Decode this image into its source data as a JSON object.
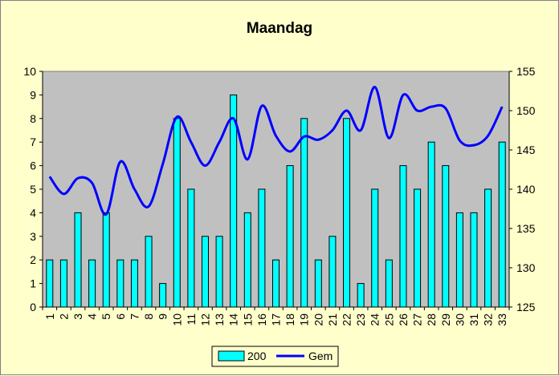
{
  "chart_data": {
    "type": "bar",
    "title": "Maandag",
    "categories": [
      "1",
      "2",
      "3",
      "4",
      "5",
      "6",
      "7",
      "8",
      "9",
      "10",
      "11",
      "12",
      "13",
      "14",
      "15",
      "16",
      "17",
      "18",
      "19",
      "20",
      "21",
      "22",
      "23",
      "24",
      "25",
      "26",
      "27",
      "28",
      "29",
      "30",
      "31",
      "32",
      "33"
    ],
    "series": [
      {
        "name": "200",
        "type": "bar",
        "axis": "left",
        "color": "#00ffff",
        "values": [
          2,
          2,
          4,
          2,
          4,
          2,
          2,
          3,
          1,
          8,
          5,
          3,
          3,
          9,
          4,
          5,
          2,
          6,
          8,
          2,
          3,
          8,
          1,
          5,
          2,
          6,
          5,
          7,
          6,
          4,
          4,
          5,
          7
        ]
      },
      {
        "name": "Gem",
        "type": "line",
        "axis": "right",
        "color": "#0000ff",
        "values": [
          141.6,
          139.4,
          141.4,
          140.8,
          136.8,
          143.5,
          140.0,
          137.8,
          143.2,
          149.2,
          146.0,
          143.0,
          146.0,
          149.0,
          143.8,
          150.6,
          146.8,
          144.8,
          146.7,
          146.3,
          147.5,
          150.0,
          147.5,
          153.0,
          146.5,
          152.0,
          150.0,
          150.5,
          150.3,
          146.2,
          145.6,
          146.8,
          150.5
        ]
      }
    ],
    "ylim_left": [
      0,
      10
    ],
    "ylim_right": [
      125,
      155
    ],
    "yticks_left": [
      "0",
      "1",
      "2",
      "3",
      "4",
      "5",
      "6",
      "7",
      "8",
      "9",
      "10"
    ],
    "yticks_right": [
      "125",
      "130",
      "135",
      "140",
      "145",
      "150",
      "155"
    ],
    "grid": false,
    "plot_background": "#c0c0c0",
    "page_background": "#ffffcc",
    "legend": {
      "placement": "bottom",
      "items": [
        "200",
        "Gem"
      ]
    }
  }
}
